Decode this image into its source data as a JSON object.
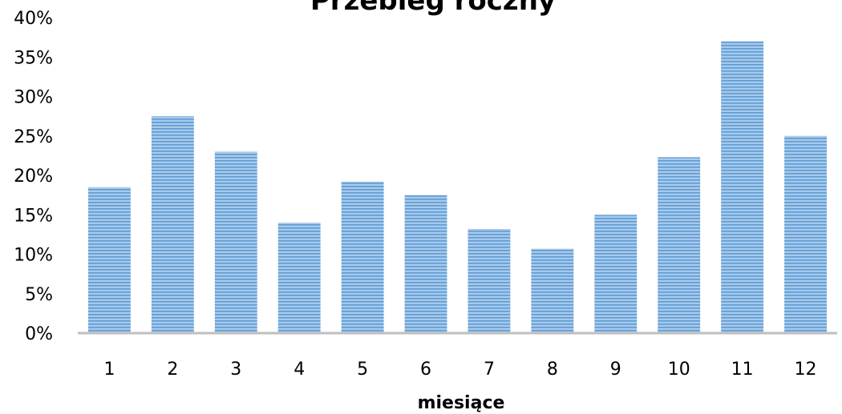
{
  "chart_data": {
    "type": "bar",
    "title": "Przebieg roczny",
    "xlabel": "miesiące",
    "ylabel": "",
    "categories": [
      "1",
      "2",
      "3",
      "4",
      "5",
      "6",
      "7",
      "8",
      "9",
      "10",
      "11",
      "12"
    ],
    "values": [
      18.5,
      27.5,
      23,
      14,
      19.2,
      17.5,
      13.2,
      10.7,
      15,
      22.3,
      37,
      25
    ],
    "ylim": [
      0,
      40
    ],
    "yticks": [
      0,
      5,
      10,
      15,
      20,
      25,
      30,
      35,
      40
    ],
    "ytick_format": "percent",
    "grid": false,
    "legend": "none",
    "bar_color": "#9dc3e6",
    "bar_stripe_color": "#5b9bd5",
    "axis_color": "#bfbfbf"
  }
}
